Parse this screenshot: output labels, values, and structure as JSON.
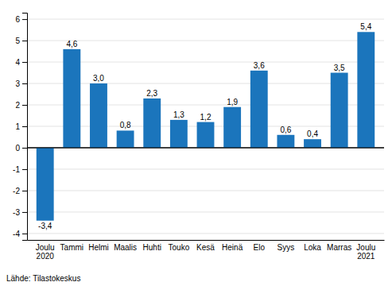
{
  "chart_data": {
    "type": "bar",
    "categories": [
      "Joulu\n2020",
      "Tammi",
      "Helmi",
      "Maalis",
      "Huhti",
      "Touko",
      "Kesä",
      "Heinä",
      "Elo",
      "Syys",
      "Loka",
      "Marras",
      "Joulu\n2021"
    ],
    "values": [
      -3.4,
      4.6,
      3.0,
      0.8,
      2.3,
      1.3,
      1.2,
      1.9,
      3.6,
      0.6,
      0.4,
      3.5,
      5.4
    ],
    "value_labels": [
      "-3,4",
      "4,6",
      "3,0",
      "0,8",
      "2,3",
      "1,3",
      "1,2",
      "1,9",
      "3,6",
      "0,6",
      "0,4",
      "3,5",
      "5,4"
    ],
    "data_labels": true,
    "color": "#1b75bc",
    "ylim": [
      -4.3,
      6.3
    ],
    "yticks": [
      -4,
      -3,
      -2,
      -1,
      0,
      1,
      2,
      3,
      4,
      5,
      6
    ],
    "grid": true,
    "annotations": [
      "Lähde: Tilastokeskus"
    ]
  }
}
